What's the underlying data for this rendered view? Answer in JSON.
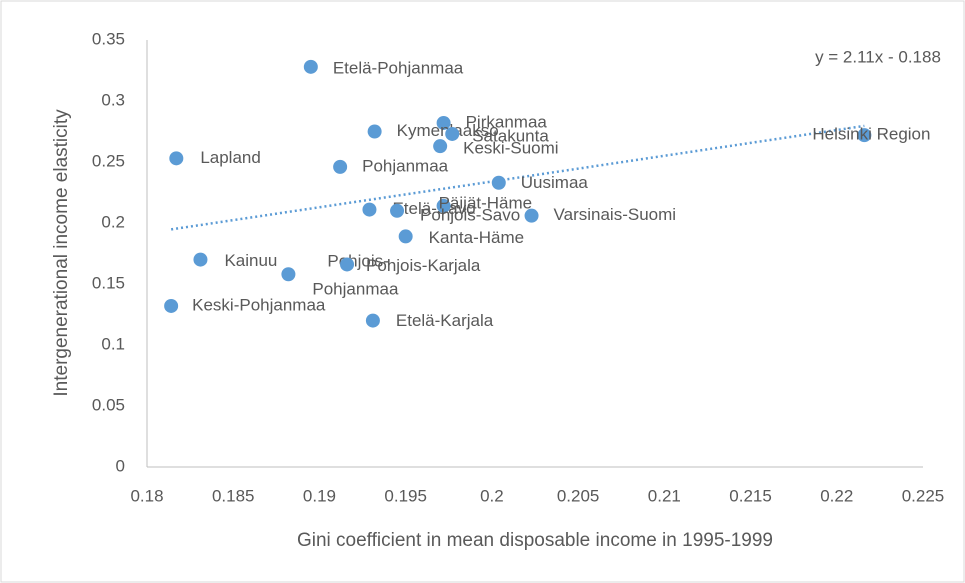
{
  "chart_data": {
    "type": "scatter",
    "x_label": "Gini coefficient in mean disposable income in 1995-1999",
    "y_label": "Intergenerational income elasticity",
    "color": "#5b9bd5",
    "labels": [
      "Etelä-Pohjanmaa",
      "Pirkanmaa",
      "Kymenlaakso",
      "Satakunta",
      "Keski-Suomi",
      "Helsinki Region",
      "Lapland",
      "Pohjanmaa",
      "Uusimaa",
      "Etelä-Savo",
      "Päijät-Häme",
      "Pohjois-Savo",
      "Varsinais-Suomi",
      "Kanta-Häme",
      "Kainuu",
      [
        "Pohjois-",
        "Pohjanmaa"
      ],
      "Pohjois-Karjala",
      "Keski-Pohjanmaa",
      "Etelä-Karjala"
    ],
    "x": [
      0.1895,
      0.1972,
      0.1932,
      0.1977,
      0.197,
      0.2216,
      0.1817,
      0.1912,
      0.2004,
      0.1929,
      0.1972,
      0.1945,
      0.2023,
      0.195,
      0.1831,
      0.1882,
      0.1916,
      0.1814,
      0.1931
    ],
    "values": [
      0.328,
      0.282,
      0.275,
      0.273,
      0.263,
      0.272,
      0.253,
      0.246,
      0.233,
      0.211,
      0.214,
      0.21,
      0.206,
      0.189,
      0.17,
      0.158,
      0.166,
      0.132,
      0.12
    ],
    "trendline": {
      "label": "y = 2.11x - 0.188",
      "slope": 2.11,
      "intercept": -0.188
    },
    "xlim": [
      0.18,
      0.225
    ],
    "xticks": [
      0.18,
      0.185,
      0.19,
      0.195,
      0.2,
      0.205,
      0.21,
      0.215,
      0.22,
      0.225
    ],
    "ylim": [
      0,
      0.35
    ],
    "yticks": [
      0,
      0.05,
      0.1,
      0.15,
      0.2,
      0.25,
      0.3,
      0.35
    ],
    "grid": false
  }
}
